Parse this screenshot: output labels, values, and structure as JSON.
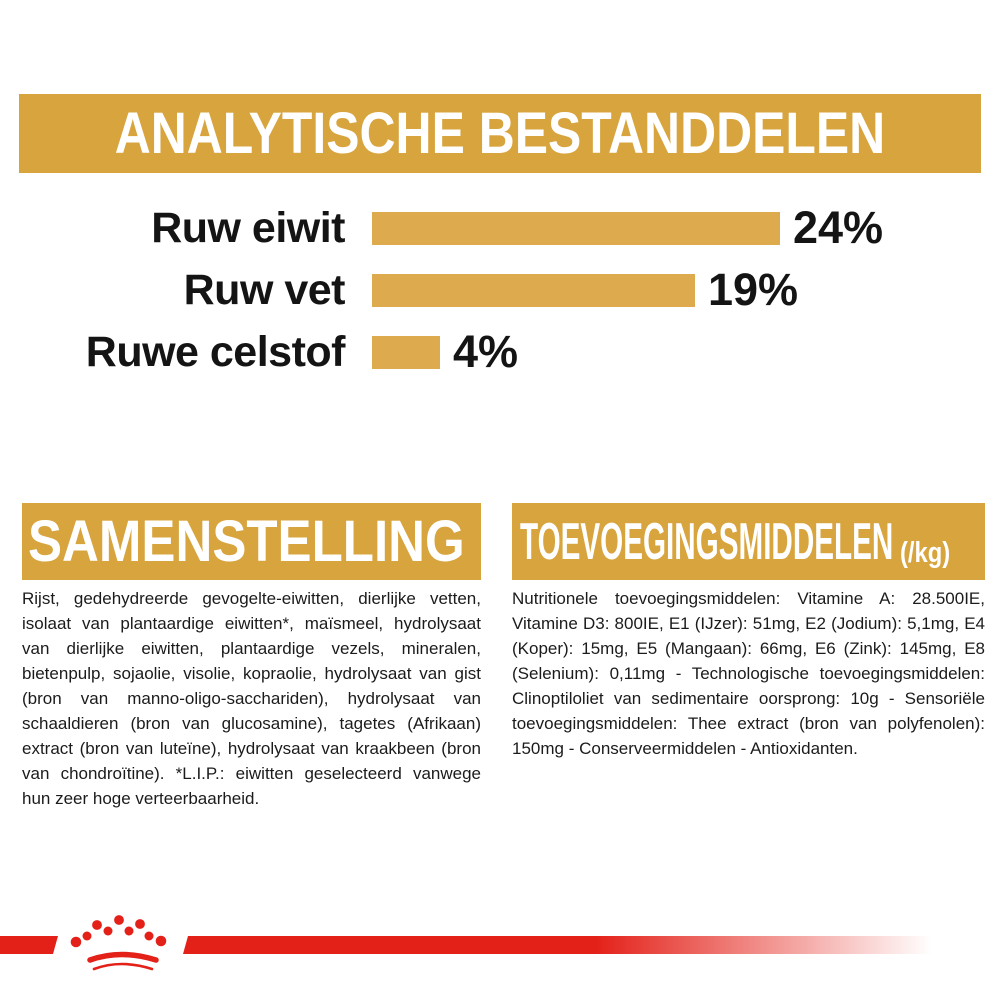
{
  "colors": {
    "gold": "#D8A43E",
    "bar_gold": "#DDAA4D",
    "red": "#E32119",
    "text": "#1B1B1B",
    "heading_text": "#FFFFFF",
    "background": "#FFFFFF"
  },
  "header": {
    "title": "ANALYTISCHE BESTANDDELEN"
  },
  "chart_data": {
    "type": "bar",
    "orientation": "horizontal",
    "title": "ANALYTISCHE BESTANDDELEN",
    "categories": [
      "Ruw eiwit",
      "Ruw vet",
      "Ruwe celstof"
    ],
    "values": [
      24,
      19,
      4
    ],
    "value_labels": [
      "24%",
      "19%",
      "4%"
    ],
    "unit": "%",
    "xlim": [
      0,
      24
    ],
    "grid": "off",
    "legend": "none",
    "bar_color": "#DDAA4D"
  },
  "sections": {
    "samenstelling": {
      "title": "SAMENSTELLING",
      "body": "Rijst, gedehydreerde gevogelte-eiwitten, dierlijke vetten, isolaat van plantaardige eiwitten*, maïsmeel, hydrolysaat van dierlijke eiwitten, plantaardige vezels, mineralen, bietenpulp, sojaolie, visolie, kopraolie, hydrolysaat van gist (bron van manno-oligo-sacchariden), hydrolysaat van schaaldieren (bron van glucosamine), tagetes (Afrikaan) extract (bron van luteïne), hydrolysaat van kraakbeen (bron van chondroïtine). *L.I.P.: eiwitten geselecteerd vanwege hun zeer hoge verteerbaarheid."
    },
    "toevoegingsmiddelen": {
      "title": "TOEVOEGINGSMIDDELEN",
      "title_suffix": "(/kg)",
      "body": "Nutritionele toevoegingsmiddelen: Vitamine A: 28.500IE, Vitamine D3: 800IE, E1 (IJzer): 51mg, E2 (Jodium): 5,1mg, E4 (Koper): 15mg, E5 (Mangaan): 66mg, E6 (Zink): 145mg, E8 (Selenium): 0,11mg - Technologische toevoegingsmiddelen: Clinoptiloliet van sedimentaire oorsprong: 10g - Sensoriële toevoegingsmiddelen: Thee extract (bron van polyfenolen): 150mg - Conserveermiddelen - Antioxidanten."
    }
  },
  "footer": {
    "logo_icon": "royal-canin-crown-icon"
  }
}
